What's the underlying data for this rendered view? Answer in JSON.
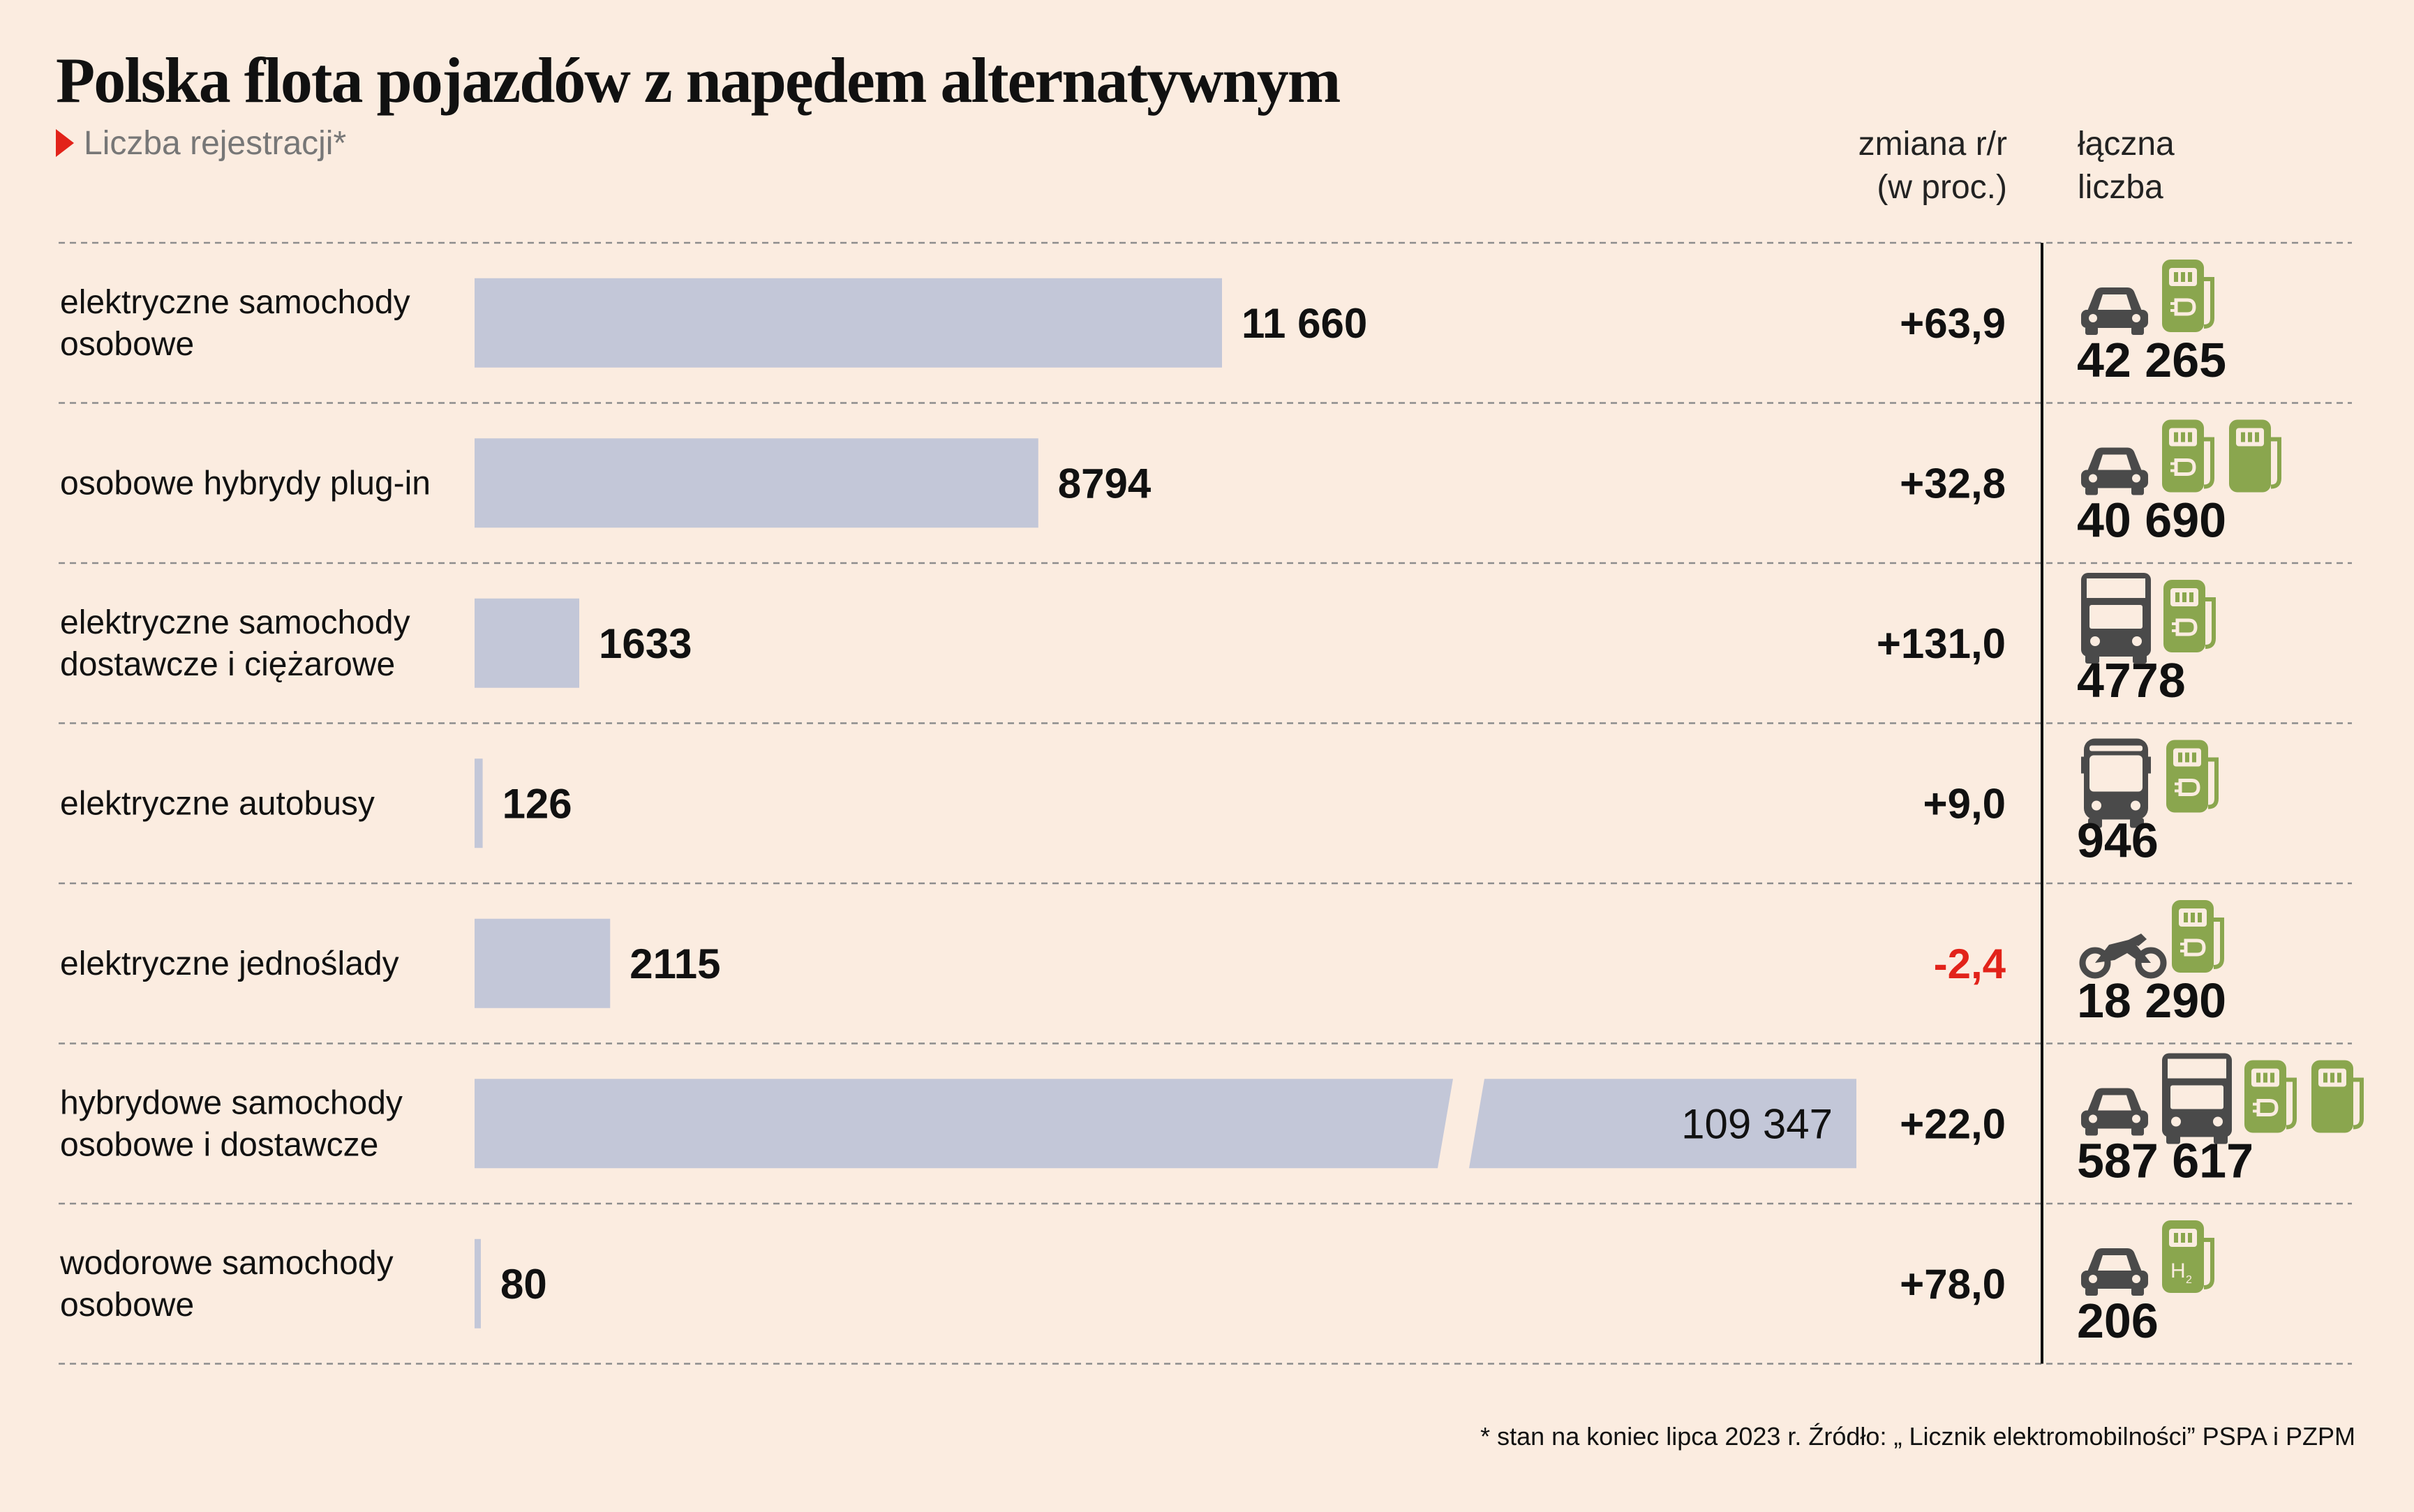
{
  "title": "Polska flota pojazdów z napędem alternatywnym",
  "subtitle": "Liczba rejestracji*",
  "headers": {
    "change_line1": "zmiana r/r",
    "change_line2": "(w proc.)",
    "total_line1": "łączna",
    "total_line2": "liczba"
  },
  "footnote": "* stan na koniec lipca 2023 r. Źródło: „ Licznik elektromobilności” PSPA i PZPM",
  "colors": {
    "bar": "#c3c7d8",
    "icon_gray": "#4a4a4a",
    "icon_green": "#8aa64e",
    "negative": "#e2231a",
    "background": "#fbece0"
  },
  "chart_data": {
    "type": "bar",
    "orientation": "horizontal",
    "axis_break": true,
    "categories": [
      [
        "elektryczne samochody",
        "osobowe"
      ],
      [
        "osobowe hybrydy plug-in"
      ],
      [
        "elektryczne samochody",
        "dostawcze i ciężarowe"
      ],
      [
        "elektryczne autobusy"
      ],
      [
        "elektryczne jednoślady"
      ],
      [
        "hybrydowe samochody",
        "osobowe i dostawcze"
      ],
      [
        "wodorowe samochody",
        "osobowe"
      ]
    ],
    "values": [
      11660,
      8794,
      1633,
      126,
      2115,
      109347,
      80
    ],
    "value_labels": [
      "11 660",
      "8794",
      "1633",
      "126",
      "2115",
      "109 347",
      "80"
    ],
    "change_labels": [
      "+63,9",
      "+32,8",
      "+131,0",
      "+9,0",
      "-2,4",
      "+22,0",
      "+78,0"
    ],
    "change_values": [
      63.9,
      32.8,
      131.0,
      9.0,
      -2.4,
      22.0,
      78.0
    ],
    "totals": [
      42265,
      40690,
      4778,
      946,
      18290,
      587617,
      206
    ],
    "total_labels": [
      "42 265",
      "40 690",
      "4778",
      "946",
      "18 290",
      "587 617",
      "206"
    ],
    "icons": [
      [
        "car-icon",
        "charger-icon"
      ],
      [
        "car-icon",
        "charger-icon",
        "fuel-pump-icon"
      ],
      [
        "truck-icon",
        "charger-icon"
      ],
      [
        "bus-icon",
        "charger-icon"
      ],
      [
        "motorcycle-icon",
        "charger-icon"
      ],
      [
        "car-icon",
        "truck-icon",
        "charger-icon",
        "fuel-pump-icon"
      ],
      [
        "car-icon",
        "hydrogen-pump-icon"
      ]
    ]
  }
}
